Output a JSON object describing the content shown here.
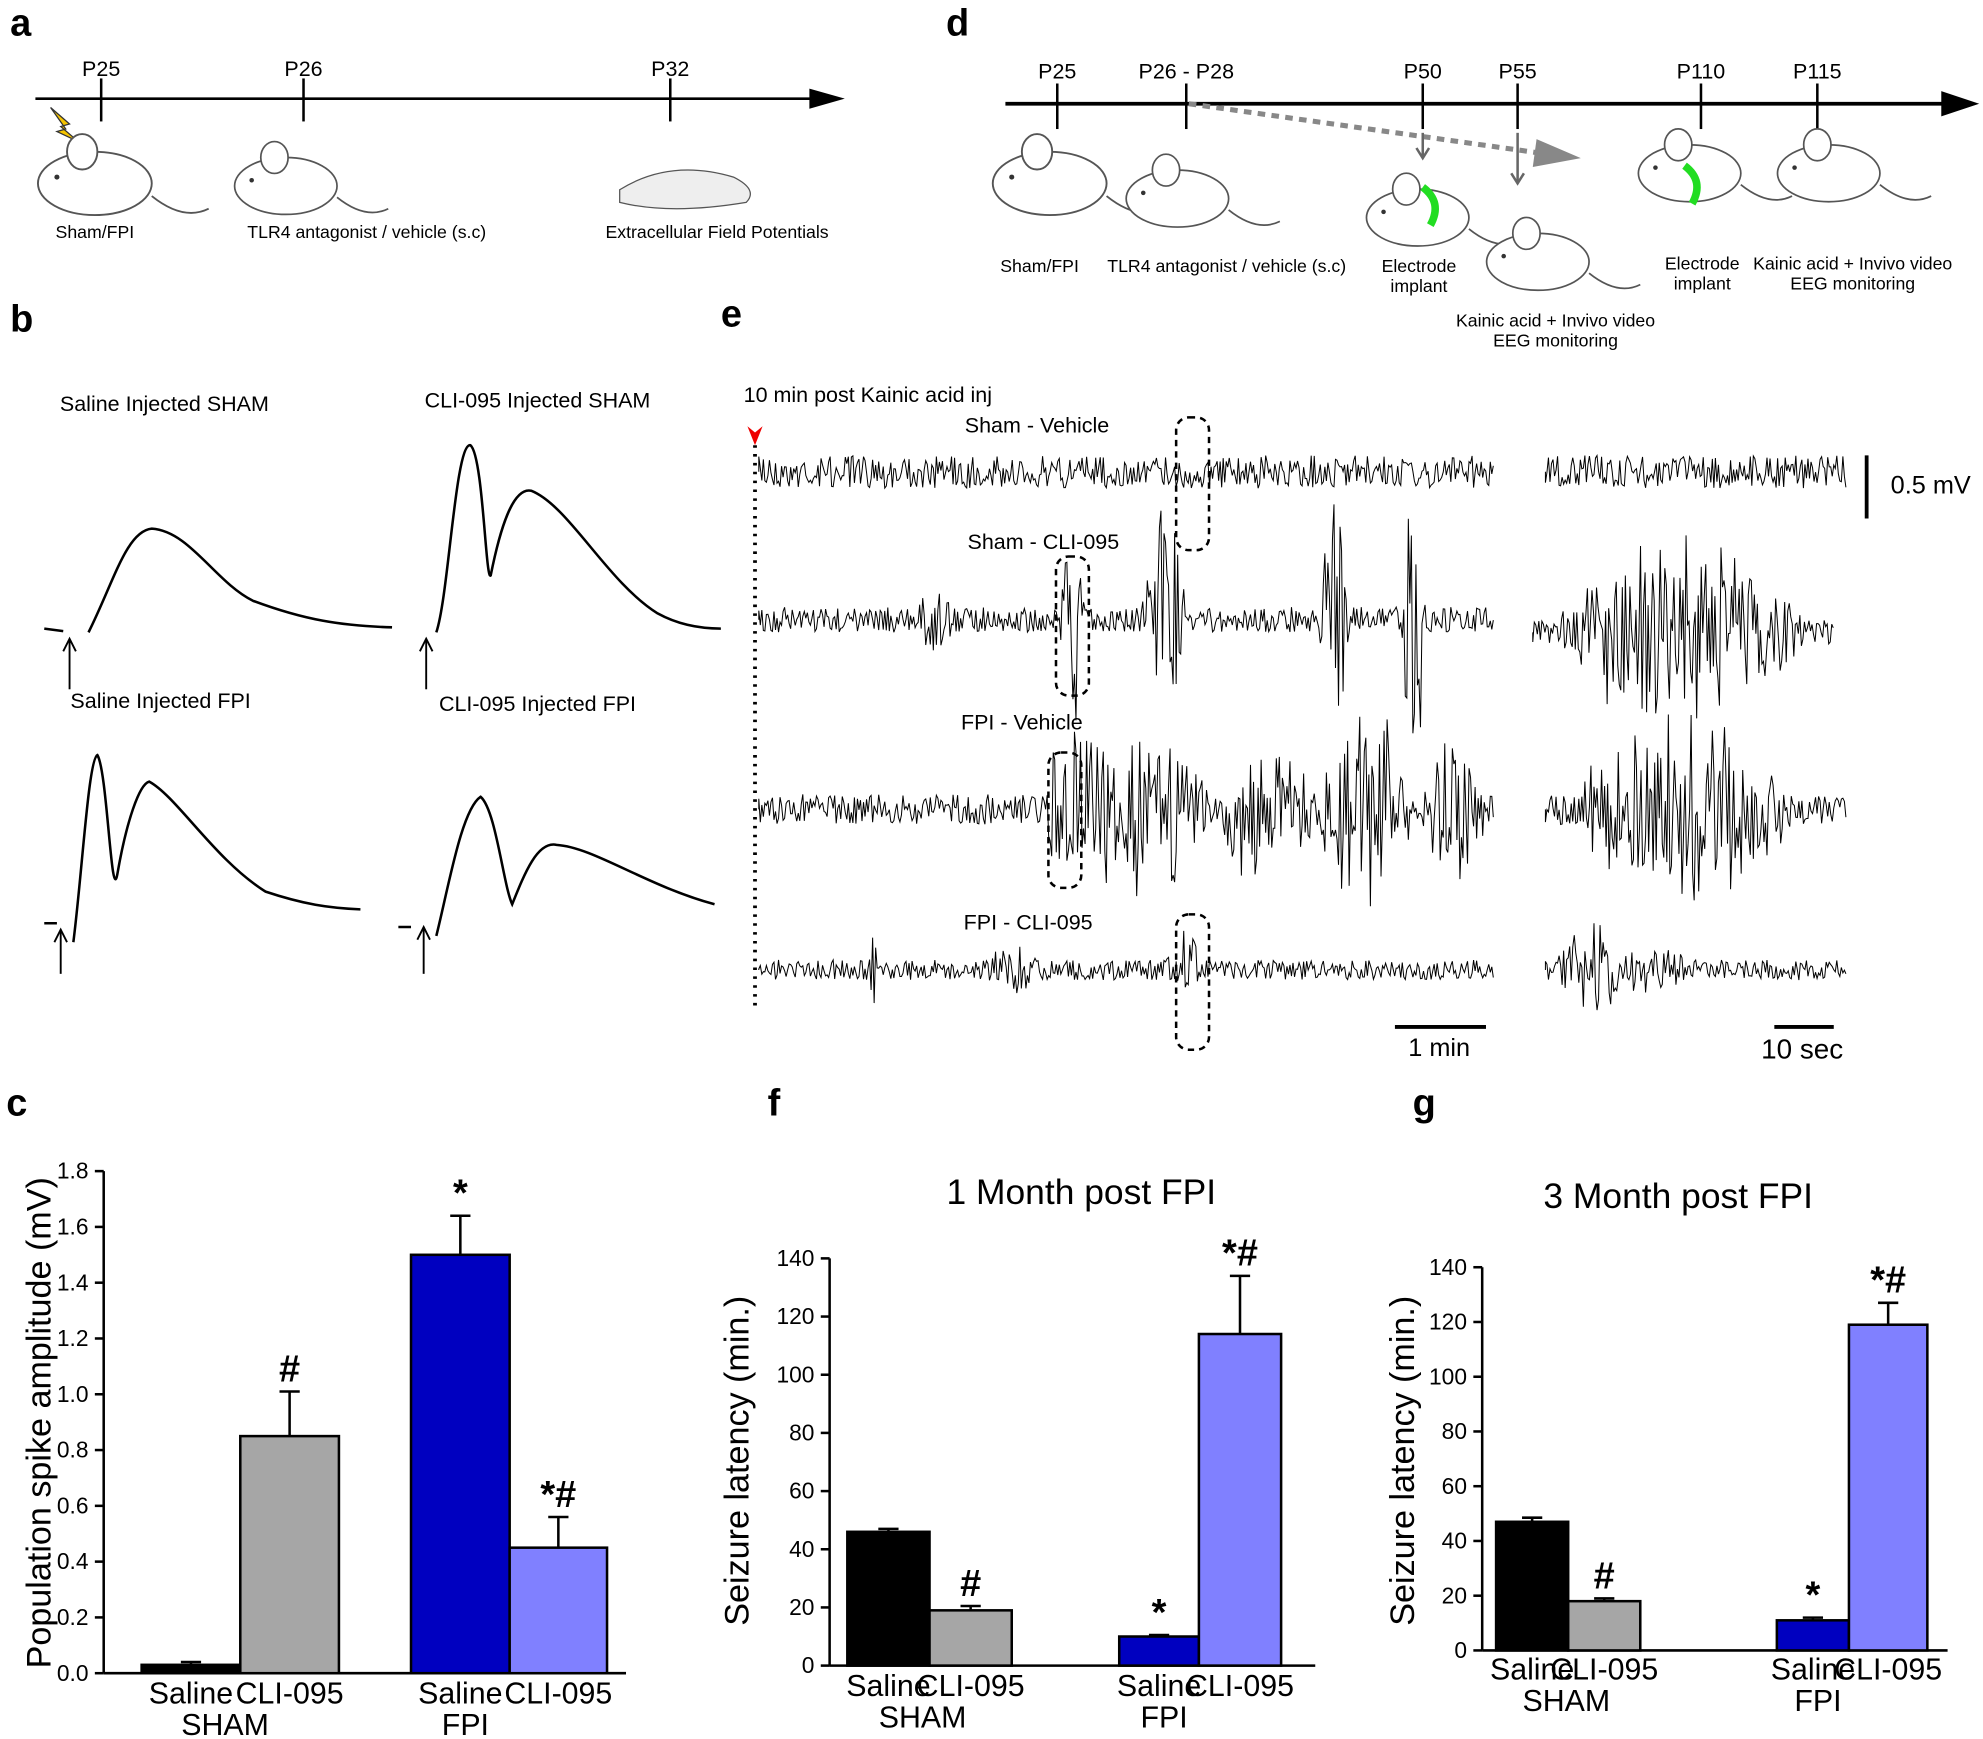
{
  "panel_a": {
    "label": "a",
    "timepoints": [
      "P25",
      "P26",
      "P32"
    ],
    "captions": [
      "Sham/FPI",
      "TLR4 antagonist / vehicle (s.c)",
      "Extracellular Field Potentials"
    ]
  },
  "panel_b": {
    "label": "b",
    "traces": [
      "Saline Injected SHAM",
      "CLI-095 Injected SHAM",
      "Saline Injected FPI",
      "CLI-095 Injected FPI"
    ]
  },
  "panel_d": {
    "label": "d",
    "timepoints": [
      "P25",
      "P26 - P28",
      "P50",
      "P55",
      "P110",
      "P115"
    ],
    "captions": [
      [
        "Sham/FPI"
      ],
      [
        "TLR4 antagonist / vehicle (s.c)"
      ],
      [
        "Electrode",
        "implant"
      ],
      [
        "Kainic acid + Invivo video",
        "EEG monitoring"
      ],
      [
        "Electrode",
        "implant"
      ],
      [
        "Kainic acid + Invivo video",
        "EEG monitoring"
      ]
    ]
  },
  "panel_e": {
    "label": "e",
    "note": "10 min post Kainic acid inj",
    "traces": [
      "Sham - Vehicle",
      "Sham - CLI-095",
      "FPI - Vehicle",
      "FPI - CLI-095"
    ],
    "scale_voltage": "0.5 mV",
    "scale_time_long": "1 min",
    "scale_time_short": "10 sec"
  },
  "chart_data": [
    {
      "type": "bar",
      "panel": "c",
      "y_label": "Population spike amplitude (mV)",
      "categories": [
        "Saline",
        "CLI-095",
        "Saline",
        "CLI-095"
      ],
      "groups": [
        "SHAM",
        "FPI"
      ],
      "values": [
        0.03,
        0.85,
        1.5,
        0.45
      ],
      "errors": [
        0.01,
        0.16,
        0.14,
        0.11
      ],
      "significance": [
        null,
        "#",
        "*",
        "*#"
      ],
      "colors": [
        "#000000",
        "#a6a6a6",
        "#0000c0",
        "#8080ff"
      ],
      "ylim": [
        0,
        1.8
      ],
      "yticks": [
        {
          "value": 0,
          "label": "0.0"
        },
        0.2,
        0.4,
        0.6,
        0.8,
        {
          "value": 1,
          "label": "1.0"
        },
        1.2,
        1.4,
        1.6,
        1.8
      ]
    },
    {
      "type": "bar",
      "panel": "f",
      "title": "1 Month post FPI",
      "y_label": "Seizure latency (min.)",
      "categories": [
        "Saline",
        "CLI-095",
        "Saline",
        "CLI-095"
      ],
      "groups": [
        "SHAM",
        "FPI"
      ],
      "values": [
        46,
        19,
        10,
        114
      ],
      "errors": [
        1,
        1.5,
        0.5,
        20
      ],
      "significance": [
        null,
        "#",
        "*",
        "*#"
      ],
      "colors": [
        "#000000",
        "#a6a6a6",
        "#0000c0",
        "#8080ff"
      ],
      "ylim": [
        0,
        140
      ],
      "yticks": [
        0,
        20,
        40,
        60,
        80,
        100,
        120,
        140
      ]
    },
    {
      "type": "bar",
      "panel": "g",
      "title": "3 Month post FPI",
      "y_label": "Seizure latency (min.)",
      "categories": [
        "Saline",
        "CLI-095",
        "Saline",
        "CLI-095"
      ],
      "groups": [
        "SHAM",
        "FPI"
      ],
      "values": [
        47,
        18,
        11,
        119
      ],
      "errors": [
        1.5,
        1,
        1,
        8
      ],
      "significance": [
        null,
        "#",
        "*",
        "*#"
      ],
      "colors": [
        "#000000",
        "#a6a6a6",
        "#0000c0",
        "#8080ff"
      ],
      "ylim": [
        0,
        140
      ],
      "yticks": [
        0,
        20,
        40,
        60,
        80,
        100,
        120,
        140
      ]
    }
  ]
}
